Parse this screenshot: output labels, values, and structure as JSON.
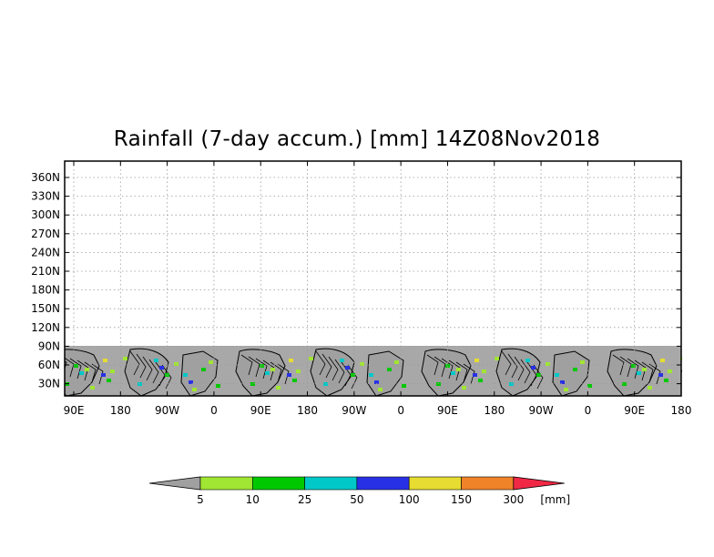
{
  "title": "Rainfall (7-day accum.) [mm] 14Z08Nov2018",
  "map": {
    "y_axis_labels": [
      "360N",
      "330N",
      "300N",
      "270N",
      "240N",
      "210N",
      "180N",
      "150N",
      "120N",
      "90N",
      "60N",
      "30N"
    ],
    "x_axis_labels": [
      "90E",
      "180",
      "90W",
      "0",
      "90E",
      "180",
      "90W",
      "0",
      "90E",
      "180",
      "90W",
      "0",
      "90E",
      "180"
    ],
    "grid": "dotted",
    "colors": {
      "frame": "#000000",
      "no_data": "#a8a8a8",
      "land": "#a0a0a0",
      "grid": "#9a9a9a"
    }
  },
  "colorbar": {
    "labels": [
      "5",
      "10",
      "25",
      "50",
      "100",
      "150",
      "300"
    ],
    "unit": "[mm]",
    "colors": [
      "#a0a0a0",
      "#a0e632",
      "#00c800",
      "#00c8c8",
      "#2830e6",
      "#e6dc32",
      "#f08228",
      "#f02846"
    ]
  }
}
